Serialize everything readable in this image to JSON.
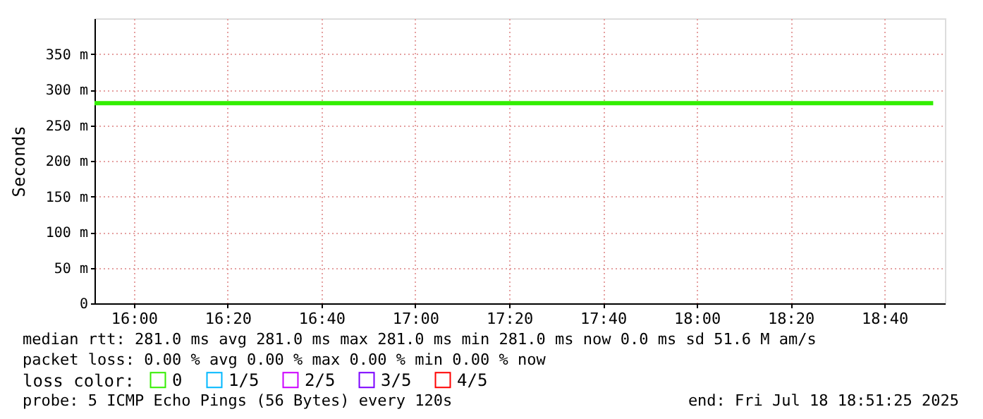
{
  "chart_data": {
    "type": "line",
    "ylabel": "Seconds",
    "x": [
      "2025-07-18T15:51:36",
      "2025-07-18T18:50:24"
    ],
    "series": [
      {
        "name": "0",
        "color": "#33ee00",
        "values": [
          281,
          281
        ]
      },
      {
        "name": "1/5",
        "color": "#00b8ff",
        "values": [
          null,
          null
        ]
      },
      {
        "name": "2/5",
        "color": "#cc00ff",
        "values": [
          null,
          null
        ]
      },
      {
        "name": "3/5",
        "color": "#7b00ff",
        "values": [
          null,
          null
        ]
      },
      {
        "name": "4/5",
        "color": "#ff0000",
        "values": [
          null,
          null
        ]
      }
    ],
    "legend_title": "loss color:",
    "legend": "bottom",
    "xlim": [
      "2025-07-18T15:51:36",
      "2025-07-18T18:52:54"
    ],
    "xticks": [
      {
        "value": "2025-07-18T16:00",
        "label": "16:00"
      },
      {
        "value": "2025-07-18T16:20",
        "label": "16:20"
      },
      {
        "value": "2025-07-18T16:40",
        "label": "16:40"
      },
      {
        "value": "2025-07-18T17:00",
        "label": "17:00"
      },
      {
        "value": "2025-07-18T17:20",
        "label": "17:20"
      },
      {
        "value": "2025-07-18T17:40",
        "label": "17:40"
      },
      {
        "value": "2025-07-18T18:00",
        "label": "18:00"
      },
      {
        "value": "2025-07-18T18:20",
        "label": "18:20"
      },
      {
        "value": "2025-07-18T18:40",
        "label": "18:40"
      }
    ],
    "ylim": [
      0,
      400
    ],
    "yticks": [
      {
        "value": 0,
        "label": "0"
      },
      {
        "value": 50,
        "label": "50 m"
      },
      {
        "value": 100,
        "label": "100 m"
      },
      {
        "value": 150,
        "label": "150 m"
      },
      {
        "value": 200,
        "label": "200 m"
      },
      {
        "value": 250,
        "label": "250 m"
      },
      {
        "value": 300,
        "label": "300 m"
      },
      {
        "value": 350,
        "label": "350 m"
      }
    ],
    "grid": true,
    "marker": "none",
    "line_style": "solid",
    "annotations": [
      "median rtt: 281.0 ms avg 281.0 ms max 281.0 ms min 281.0 ms now 0.0 ms sd 51.6 M am/s",
      "packet loss: 0.00 % avg 0.00 % max 0.00 % min 0.00 % now",
      "probe: 5 ICMP Echo Pings (56 Bytes) every 120s",
      "end: Fri Jul 18 18:51:25 2025"
    ]
  }
}
